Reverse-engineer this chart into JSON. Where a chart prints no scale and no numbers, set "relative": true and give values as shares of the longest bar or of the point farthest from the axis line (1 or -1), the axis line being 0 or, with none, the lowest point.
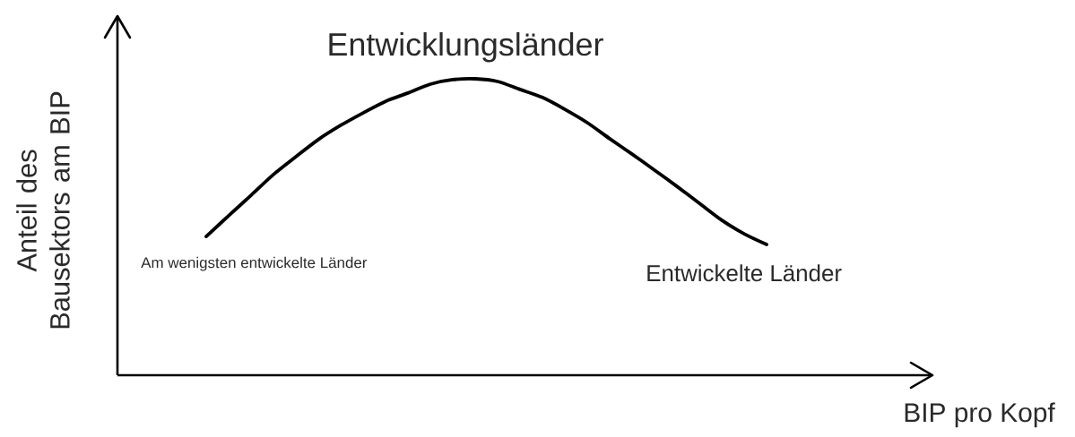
{
  "chart_data": {
    "type": "line",
    "relative": true,
    "xlabel": "BIP pro Kopf",
    "ylabel": "Anteil des Bausektors am BIP",
    "categories": [
      null,
      null,
      null,
      null,
      null,
      null,
      null,
      null,
      null,
      null,
      null,
      null,
      null,
      null,
      null,
      null,
      null,
      null,
      null,
      null,
      null,
      null,
      null,
      null,
      null,
      null
    ],
    "series": [
      {
        "color": "#000000",
        "values": [
          0.468,
          0.538,
          0.607,
          0.677,
          0.737,
          0.795,
          0.843,
          0.885,
          0.924,
          0.952,
          0.982,
          0.997,
          1.0,
          0.991,
          0.964,
          0.937,
          0.897,
          0.852,
          0.798,
          0.746,
          0.692,
          0.637,
          0.58,
          0.523,
          0.477,
          0.441
        ]
      }
    ],
    "line_style": "solid",
    "annotations": [
      "Entwicklungsländer",
      "Am wenigsten entwickelte Länder",
      "Entwickelte Länder"
    ]
  }
}
